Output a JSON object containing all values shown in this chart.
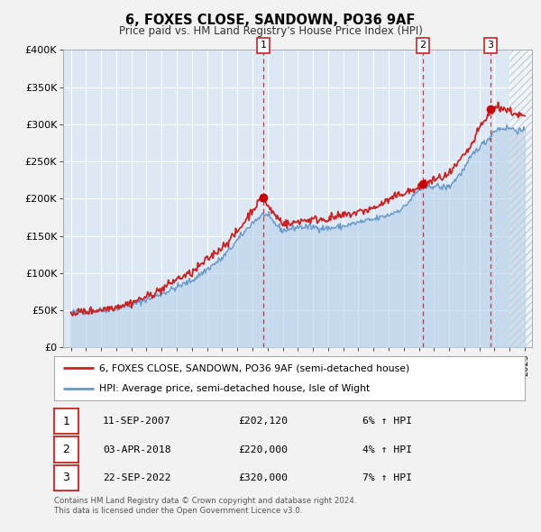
{
  "title": "6, FOXES CLOSE, SANDOWN, PO36 9AF",
  "subtitle": "Price paid vs. HM Land Registry's House Price Index (HPI)",
  "xlim": [
    1994.5,
    2025.5
  ],
  "ylim": [
    0,
    400000
  ],
  "yticks": [
    0,
    50000,
    100000,
    150000,
    200000,
    250000,
    300000,
    350000,
    400000
  ],
  "ytick_labels": [
    "£0",
    "£50K",
    "£100K",
    "£150K",
    "£200K",
    "£250K",
    "£300K",
    "£350K",
    "£400K"
  ],
  "xticks": [
    1995,
    1996,
    1997,
    1998,
    1999,
    2000,
    2001,
    2002,
    2003,
    2004,
    2005,
    2006,
    2007,
    2008,
    2009,
    2010,
    2011,
    2012,
    2013,
    2014,
    2015,
    2016,
    2017,
    2018,
    2019,
    2020,
    2021,
    2022,
    2023,
    2024,
    2025
  ],
  "background_color": "#dce9f5",
  "fig_bg_color": "#f2f2f2",
  "hpi_line_color": "#6699cc",
  "price_line_color": "#cc2222",
  "sale_marker_color": "#cc0000",
  "vline_color": "#cc2222",
  "sale1_x": 2007.71,
  "sale1_y": 202120,
  "sale2_x": 2018.25,
  "sale2_y": 220000,
  "sale3_x": 2022.72,
  "sale3_y": 320000,
  "hatch_start": 2024.0,
  "table_rows": [
    {
      "num": "1",
      "date": "11-SEP-2007",
      "price": "£202,120",
      "hpi": "6% ↑ HPI"
    },
    {
      "num": "2",
      "date": "03-APR-2018",
      "price": "£220,000",
      "hpi": "4% ↑ HPI"
    },
    {
      "num": "3",
      "date": "22-SEP-2022",
      "price": "£320,000",
      "hpi": "7% ↑ HPI"
    }
  ],
  "footnote1": "Contains HM Land Registry data © Crown copyright and database right 2024.",
  "footnote2": "This data is licensed under the Open Government Licence v3.0.",
  "legend_line1": "6, FOXES CLOSE, SANDOWN, PO36 9AF (semi-detached house)",
  "legend_line2": "HPI: Average price, semi-detached house, Isle of Wight"
}
